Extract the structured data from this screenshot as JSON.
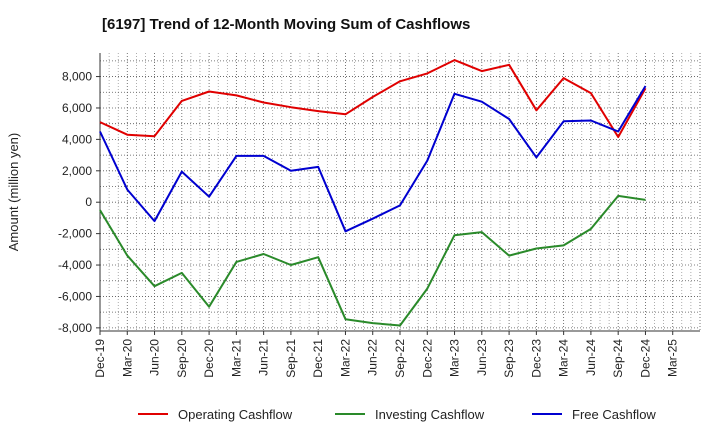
{
  "chart_data": {
    "type": "line",
    "title": "[6197]  Trend of 12-Month Moving Sum of Cashflows",
    "ylabel": "Amount (million yen)",
    "xlabel": "",
    "ylim": [
      -8200,
      9500
    ],
    "yticks": [
      -8000,
      -6000,
      -4000,
      -2000,
      0,
      2000,
      4000,
      6000,
      8000
    ],
    "ytick_labels": [
      "-8,000",
      "-6,000",
      "-4,000",
      "-2,000",
      "0",
      "2,000",
      "4,000",
      "6,000",
      "8,000"
    ],
    "categories": [
      "Dec-19",
      "Mar-20",
      "Jun-20",
      "Sep-20",
      "Dec-20",
      "Mar-21",
      "Jun-21",
      "Sep-21",
      "Dec-21",
      "Mar-22",
      "Jun-22",
      "Sep-22",
      "Dec-22",
      "Mar-23",
      "Jun-23",
      "Sep-23",
      "Dec-23",
      "Mar-24",
      "Jun-24",
      "Sep-24",
      "Dec-24",
      "Mar-25"
    ],
    "grid": true,
    "legend_position": "bottom",
    "series": [
      {
        "name": "Operating Cashflow",
        "color": "#e00000",
        "values": [
          5100,
          4300,
          4200,
          6450,
          7050,
          6800,
          6350,
          6050,
          5800,
          5600,
          6700,
          7700,
          8200,
          9050,
          8350,
          8750,
          5850,
          7900,
          6950,
          4150,
          7250,
          null
        ]
      },
      {
        "name": "Investing Cashflow",
        "color": "#2a8a2a",
        "values": [
          -500,
          -3400,
          -5350,
          -4500,
          -6650,
          -3800,
          -3300,
          -4000,
          -3500,
          -7450,
          -7700,
          -7850,
          -5500,
          -2100,
          -1900,
          -3400,
          -2950,
          -2750,
          -1700,
          400,
          150,
          null
        ]
      },
      {
        "name": "Free Cashflow",
        "color": "#0000d0",
        "values": [
          4500,
          800,
          -1200,
          1950,
          350,
          2950,
          2950,
          2000,
          2250,
          -1850,
          -1050,
          -200,
          2650,
          6900,
          6400,
          5300,
          2850,
          5150,
          5200,
          4500,
          7400,
          null
        ]
      }
    ]
  }
}
